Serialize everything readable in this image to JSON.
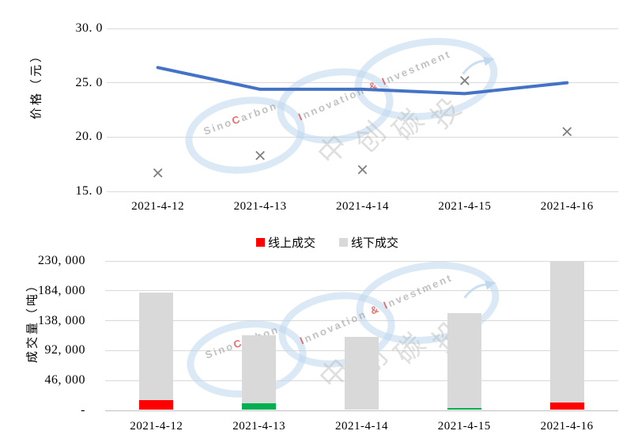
{
  "legend": {
    "items": [
      {
        "label": "线上成交",
        "color": "#FF0000"
      },
      {
        "label": "线下成交",
        "color": "#D9D9D9"
      }
    ]
  },
  "watermark": {
    "sino": {
      "pre": "Sino",
      "accent": "C",
      "post": "arbon"
    },
    "inno": {
      "i1": "I",
      "t1": "nnovation ",
      "amp": "& ",
      "i2": "I",
      "t2": "nvestment"
    },
    "cjk": "中创碳投"
  },
  "colors": {
    "line_blue": "#4472C4",
    "x_marker_gray": "#7F7F7F",
    "bar_red": "#FF0000",
    "bar_green": "#00B050",
    "bar_gray": "#D9D9D9",
    "gridline": "#D9D9D9",
    "axisline": "#BFBFBF",
    "text": "#000000",
    "watermark_blue": "#BDD7EE"
  },
  "chart_data": [
    {
      "id": "price",
      "type": "line",
      "title": "",
      "ylabel": "价格（元）",
      "xlabel": "",
      "categories": [
        "2021-4-12",
        "2021-4-13",
        "2021-4-14",
        "2021-4-15",
        "2021-4-16"
      ],
      "ylim": [
        15.0,
        30.0
      ],
      "y_ticks": [
        30.0,
        25.0,
        20.0,
        15.0
      ],
      "y_tick_labels": [
        "30. 0",
        "25. 0",
        "20. 0",
        "15. 0"
      ],
      "grid": true,
      "legend_position": "none",
      "series": [
        {
          "name": "price-line",
          "style": "line",
          "color": "#4472C4",
          "values": [
            26.4,
            24.4,
            24.4,
            24.0,
            25.0
          ]
        },
        {
          "name": "price-x-markers",
          "style": "x-marker",
          "color": "#7F7F7F",
          "values": [
            16.7,
            18.3,
            17.0,
            25.2,
            20.5
          ]
        }
      ]
    },
    {
      "id": "volume",
      "type": "bar",
      "stacked": true,
      "title": "",
      "ylabel": "成交量（吨）",
      "xlabel": "",
      "categories": [
        "2021-4-12",
        "2021-4-13",
        "2021-4-14",
        "2021-4-15",
        "2021-4-16"
      ],
      "ylim": [
        0,
        230000
      ],
      "y_ticks": [
        230000,
        184000,
        138000,
        92000,
        46000,
        0
      ],
      "y_tick_labels": [
        "230, 000",
        "184, 000",
        "138, 000",
        "92, 000",
        "46, 000",
        "-"
      ],
      "grid": true,
      "legend_position": "top",
      "series": [
        {
          "name": "线上成交",
          "color": "#FF0000",
          "values": [
            15000,
            0,
            0,
            0,
            11000
          ]
        },
        {
          "name": "green-segment",
          "color": "#00B050",
          "values": [
            0,
            10000,
            0,
            3000,
            0
          ]
        },
        {
          "name": "线下成交",
          "color": "#D9D9D9",
          "values": [
            165000,
            104000,
            112000,
            145000,
            217000
          ]
        }
      ],
      "totals": [
        180000,
        114000,
        112000,
        148000,
        228000
      ]
    }
  ]
}
